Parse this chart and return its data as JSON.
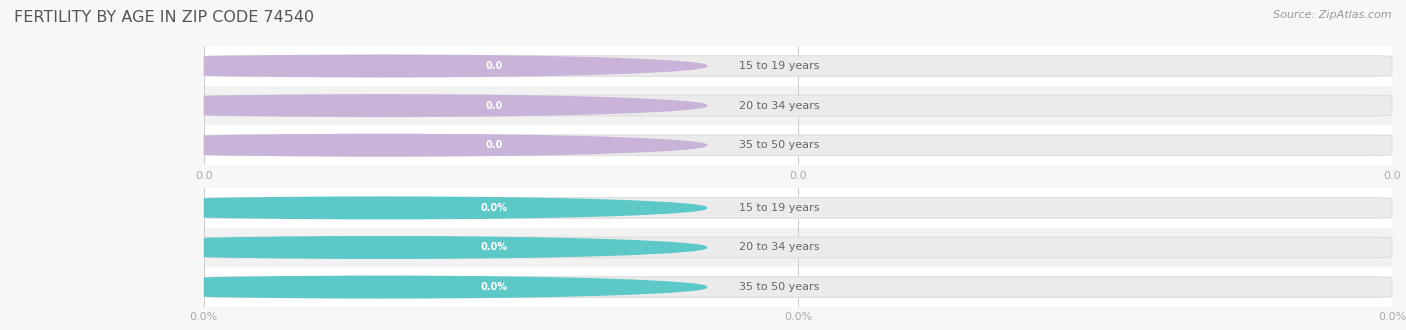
{
  "title": "FERTILITY BY AGE IN ZIP CODE 74540",
  "source": "Source: ZipAtlas.com",
  "background_color": "#f7f7f7",
  "top_groups": [
    {
      "label": "15 to 19 years",
      "value": 0.0,
      "display": "0.0"
    },
    {
      "label": "20 to 34 years",
      "value": 0.0,
      "display": "0.0"
    },
    {
      "label": "35 to 50 years",
      "value": 0.0,
      "display": "0.0"
    }
  ],
  "bottom_groups": [
    {
      "label": "15 to 19 years",
      "value": 0.0,
      "display": "0.0%"
    },
    {
      "label": "20 to 34 years",
      "value": 0.0,
      "display": "0.0%"
    },
    {
      "label": "35 to 50 years",
      "value": 0.0,
      "display": "0.0%"
    }
  ],
  "top_circle_color": "#c9b3d9",
  "top_pill_color": "#c9b3d9",
  "bottom_circle_color": "#5dc8c8",
  "bottom_pill_color": "#5dc8c8",
  "bar_bg_color": "#ebebeb",
  "bar_border_color": "#dddddd",
  "label_color": "#666666",
  "grid_color": "#cccccc",
  "title_color": "#555555",
  "source_color": "#999999",
  "row_colors": [
    "#ffffff",
    "#f2f2f2"
  ],
  "xtick_label_color": "#aaaaaa"
}
